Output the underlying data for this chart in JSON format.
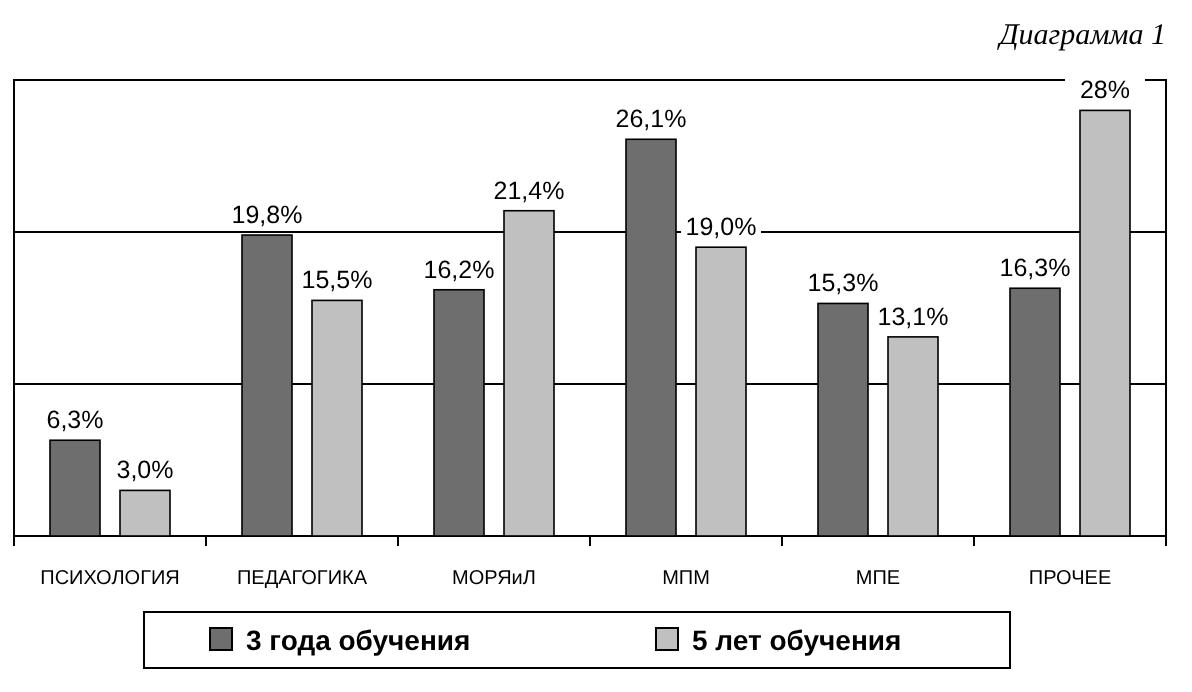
{
  "chart_data": {
    "type": "bar",
    "title": "Диаграмма 1",
    "categories": [
      "ПСИХОЛОГИЯ",
      "ПЕДАГОГИКА",
      "МОРЯиЛ",
      "МПМ",
      "МПЕ",
      "ПРОЧЕЕ"
    ],
    "series": [
      {
        "name": "3 года обучения",
        "color": "#6e6e6e",
        "values": [
          6.3,
          19.8,
          16.2,
          26.1,
          15.3,
          16.3
        ],
        "value_labels": [
          "6,3%",
          "19,8%",
          "16,2%",
          "26,1%",
          "15,3%",
          "16,3%"
        ]
      },
      {
        "name": "5 лет обучения",
        "color": "#c0c0c0",
        "values": [
          3.0,
          15.5,
          21.4,
          19.0,
          13.1,
          28
        ],
        "value_labels": [
          "3,0%",
          "15,5%",
          "21,4%",
          "19,0%",
          "13,1%",
          "28%"
        ]
      }
    ],
    "ylim": [
      0,
      30
    ],
    "yticks": [
      {
        "value": 0,
        "label": null
      },
      {
        "value": 10,
        "label": null
      },
      {
        "value": 20,
        "label": null
      },
      {
        "value": 30,
        "label": null
      }
    ],
    "tick_labels": "x",
    "legend": "bottom"
  }
}
